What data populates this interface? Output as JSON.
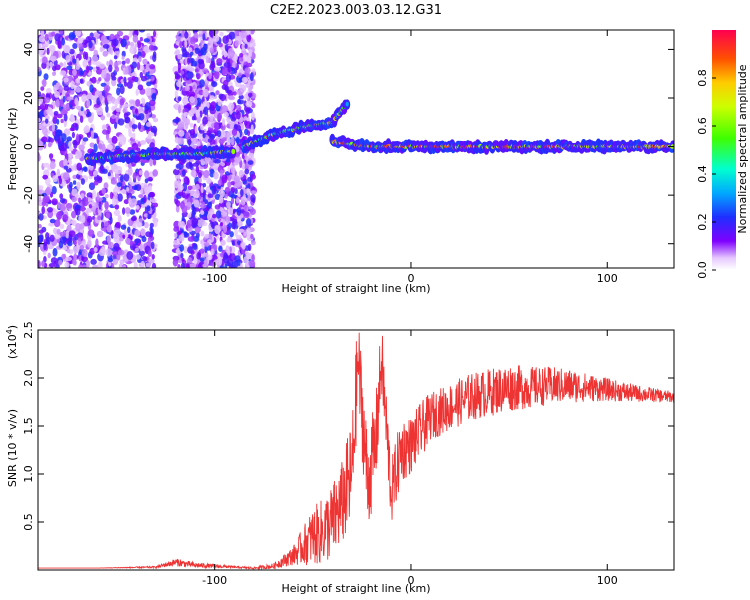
{
  "title": "C2E2.2023.003.03.12.G31",
  "chart_data": [
    {
      "type": "heatmap",
      "xlabel": "Height of straight line (km)",
      "ylabel": "Frequency (Hz)",
      "xlim": [
        -190,
        134
      ],
      "ylim": [
        -50,
        48
      ],
      "xticks": [
        -100,
        0,
        100
      ],
      "yticks": [
        -40,
        -20,
        0,
        20,
        40
      ],
      "xtick_labels": [
        "-100",
        "0",
        "100"
      ],
      "ytick_labels": [
        "-40",
        "-20",
        "0",
        "20",
        "40"
      ],
      "colorbar": {
        "label": "Normalized spectral amplitude",
        "range": [
          0,
          1
        ],
        "ticks": [
          0.0,
          0.2,
          0.4,
          0.6,
          0.8
        ],
        "tick_labels": [
          "0.0",
          "0.2",
          "0.4",
          "0.6",
          "0.8"
        ],
        "colormap": "rainbow"
      },
      "features": [
        {
          "description": "scattered noise",
          "x_range": [
            -190,
            -130
          ]
        },
        {
          "description": "scattered noise",
          "x_range": [
            -120,
            -80
          ]
        },
        {
          "description": "weak line near 0 Hz",
          "x": [
            -165,
            -130,
            -110,
            -90
          ],
          "y": [
            -5,
            -3,
            -3,
            -2
          ]
        },
        {
          "description": "rising branch",
          "x": [
            -85,
            -70,
            -55,
            -40,
            -32
          ],
          "y": [
            0,
            5,
            8,
            10,
            18
          ]
        },
        {
          "description": "strong carrier line",
          "x": [
            -40,
            -20,
            0,
            40,
            80,
            134
          ],
          "y": [
            2,
            0,
            0,
            0,
            0,
            0
          ]
        }
      ]
    },
    {
      "type": "line",
      "xlabel": "Height of straight line (km)",
      "ylabel": "SNR (10 * v/v)",
      "y_scale_label": "(x10",
      "y_scale_exponent": "4",
      "xlim": [
        -190,
        134
      ],
      "ylim": [
        0,
        2.5
      ],
      "xticks": [
        -100,
        0,
        100
      ],
      "yticks": [
        0.5,
        1.0,
        1.5,
        2.0,
        2.5
      ],
      "xtick_labels": [
        "-100",
        "0",
        "100"
      ],
      "ytick_labels": [
        "0.5",
        "1.0",
        "1.5",
        "2.0",
        "2.5"
      ],
      "series": [
        {
          "color": "#ee3333",
          "x": [
            -190,
            -160,
            -130,
            -120,
            -110,
            -90,
            -80,
            -70,
            -60,
            -55,
            -50,
            -45,
            -40,
            -35,
            -30,
            -27,
            -22,
            -18,
            -15,
            -10,
            -5,
            0,
            5,
            10,
            20,
            30,
            40,
            50,
            60,
            70,
            80,
            90,
            100,
            110,
            120,
            134
          ],
          "y": [
            0.02,
            0.02,
            0.03,
            0.08,
            0.05,
            0.03,
            0.02,
            0.04,
            0.15,
            0.25,
            0.35,
            0.4,
            0.5,
            0.7,
            1.0,
            2.2,
            0.9,
            1.3,
            2.2,
            0.8,
            1.25,
            1.3,
            1.45,
            1.6,
            1.7,
            1.8,
            1.85,
            1.9,
            1.9,
            1.92,
            1.92,
            1.9,
            1.88,
            1.85,
            1.83,
            1.8
          ],
          "noise_amplitude": [
            0,
            0,
            0.01,
            0.04,
            0.03,
            0.01,
            0.01,
            0.03,
            0.1,
            0.2,
            0.3,
            0.35,
            0.4,
            0.45,
            0.6,
            0.5,
            0.5,
            0.5,
            0.4,
            0.35,
            0.35,
            0.3,
            0.3,
            0.25,
            0.25,
            0.25,
            0.25,
            0.25,
            0.22,
            0.2,
            0.18,
            0.15,
            0.12,
            0.1,
            0.08,
            0.06
          ]
        }
      ]
    }
  ]
}
